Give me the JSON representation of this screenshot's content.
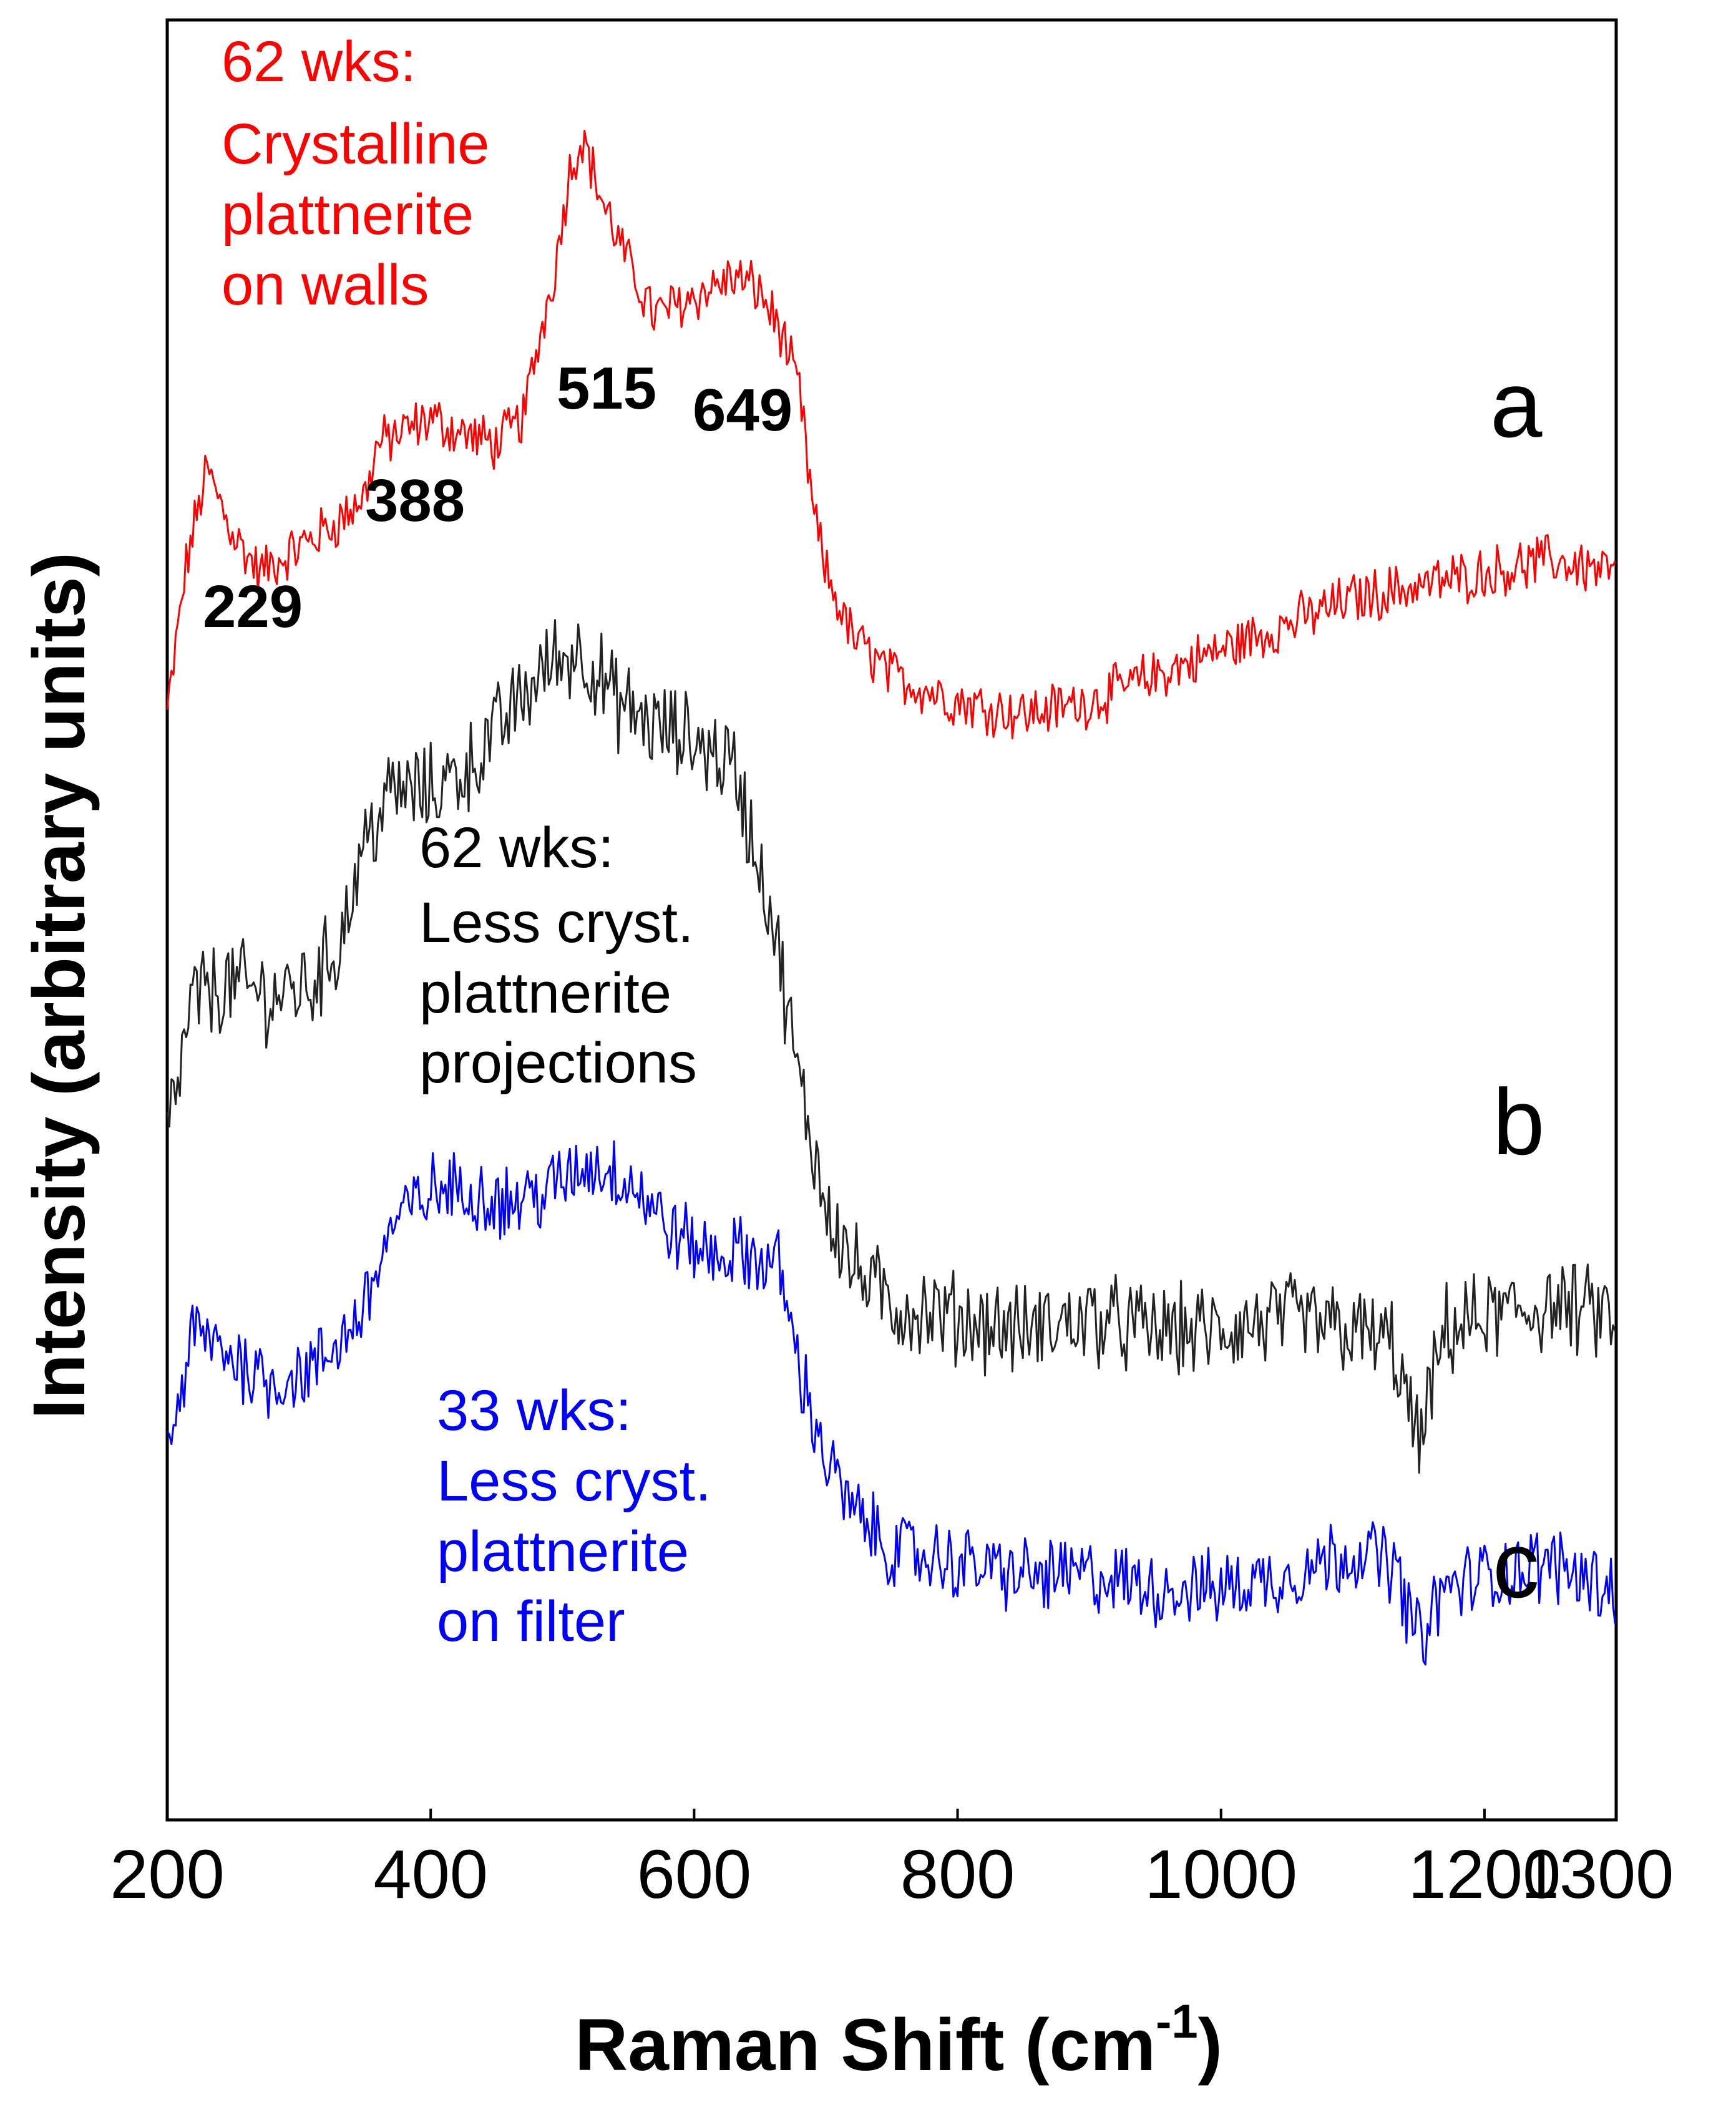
{
  "chart_data": {
    "type": "line",
    "title": "",
    "xlabel": "Raman Shift (cm",
    "xlabel_sup": "-1",
    "xlabel_end": ")",
    "ylabel": "Intensity (arbitrary units)",
    "xlim": [
      200,
      1300
    ],
    "xticks": [
      200,
      400,
      600,
      800,
      1000,
      1200,
      1300
    ],
    "yticks": [],
    "grid": false,
    "series": [
      {
        "name": "a",
        "color": "#ff0000",
        "annotation": [
          "62 wks:",
          "Crystalline",
          "plattnerite",
          "on walls"
        ],
        "x": [
          200,
          215,
          230,
          250,
          270,
          300,
          330,
          350,
          360,
          380,
          400,
          420,
          450,
          470,
          480,
          495,
          505,
          515,
          530,
          550,
          570,
          590,
          610,
          630,
          649,
          665,
          680,
          690,
          700,
          720,
          750,
          800,
          850,
          900,
          950,
          1000,
          1050,
          1100,
          1150,
          1200,
          1250,
          1300
        ],
        "y": [
          4.3,
          4.9,
          5.25,
          5.0,
          4.85,
          4.95,
          5.05,
          5.15,
          5.35,
          5.4,
          5.45,
          5.4,
          5.35,
          5.45,
          5.7,
          6.05,
          6.4,
          6.55,
          6.3,
          6.05,
          5.85,
          5.9,
          5.95,
          6.0,
          5.95,
          5.8,
          5.55,
          5.1,
          4.85,
          4.6,
          4.45,
          4.35,
          4.3,
          4.35,
          4.45,
          4.55,
          4.65,
          4.75,
          4.8,
          4.85,
          4.9,
          4.85
        ]
      },
      {
        "name": "b",
        "color": "#222222",
        "annotation": [
          "62 wks:",
          "Less cryst.",
          "plattnerite",
          "projections"
        ],
        "x": [
          200,
          220,
          250,
          280,
          310,
          330,
          350,
          370,
          400,
          430,
          460,
          490,
          515,
          540,
          570,
          600,
          630,
          660,
          680,
          700,
          720,
          750,
          800,
          850,
          900,
          950,
          1000,
          1050,
          1100,
          1130,
          1150,
          1170,
          1200,
          1250,
          1300
        ],
        "y": [
          2.65,
          3.2,
          3.25,
          3.2,
          3.25,
          3.4,
          3.8,
          4.0,
          4.0,
          4.1,
          4.3,
          4.5,
          4.55,
          4.35,
          4.25,
          4.2,
          4.1,
          3.5,
          2.85,
          2.4,
          2.15,
          2.0,
          1.95,
          1.9,
          1.95,
          1.9,
          1.9,
          1.95,
          1.9,
          1.85,
          1.45,
          1.9,
          1.95,
          2.0,
          1.95
        ]
      },
      {
        "name": "c",
        "color": "#0000ff",
        "annotation": [
          "33 wks:",
          "Less cryst.",
          "plattnerite",
          "on filter"
        ],
        "x": [
          200,
          220,
          250,
          280,
          310,
          330,
          350,
          370,
          400,
          430,
          460,
          490,
          520,
          550,
          580,
          610,
          640,
          665,
          680,
          700,
          720,
          750,
          800,
          850,
          900,
          950,
          1000,
          1050,
          1100,
          1130,
          1150,
          1170,
          1200,
          1250,
          1300
        ],
        "y": [
          1.4,
          1.9,
          1.8,
          1.7,
          1.75,
          1.85,
          2.0,
          2.3,
          2.45,
          2.45,
          2.4,
          2.45,
          2.55,
          2.5,
          2.3,
          2.2,
          2.2,
          2.15,
          1.75,
          1.4,
          1.2,
          1.05,
          1.0,
          0.95,
          0.95,
          0.9,
          0.9,
          0.95,
          1.05,
          1.0,
          0.7,
          0.9,
          0.95,
          1.0,
          0.9
        ]
      }
    ],
    "peak_labels": [
      {
        "text": "229",
        "x": 229
      },
      {
        "text": "388",
        "x": 388
      },
      {
        "text": "515",
        "x": 515
      },
      {
        "text": "649",
        "x": 649
      }
    ]
  }
}
